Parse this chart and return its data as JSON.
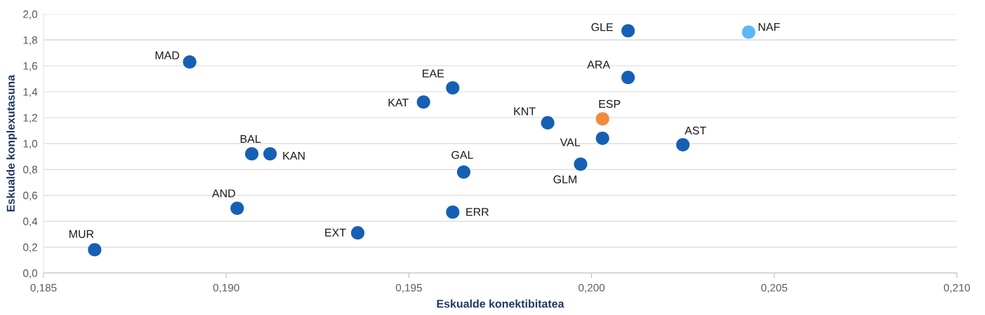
{
  "chart_data": {
    "type": "scatter",
    "xlabel": "Eskualde konektibitatea",
    "ylabel": "Eskualde konplexutasuna",
    "x": [
      0.1864,
      0.189,
      0.1903,
      0.1907,
      0.1912,
      0.1936,
      0.1954,
      0.1962,
      0.1962,
      0.1965,
      0.1988,
      0.1997,
      0.2003,
      0.2003,
      0.201,
      0.201,
      0.2025,
      0.2043
    ],
    "series": [
      {
        "values": [
          0.18,
          1.63,
          0.5,
          0.92,
          0.92,
          0.31,
          1.32,
          1.43,
          0.47,
          0.78,
          1.16,
          0.84,
          1.04,
          1.19,
          1.51,
          1.87,
          0.99,
          1.86
        ],
        "colors": [
          "#1560b4",
          "#1560b4",
          "#1560b4",
          "#1560b4",
          "#1560b4",
          "#1560b4",
          "#1560b4",
          "#1560b4",
          "#1560b4",
          "#1560b4",
          "#1560b4",
          "#1560b4",
          "#1560b4",
          "#f28a3c",
          "#1560b4",
          "#1560b4",
          "#1560b4",
          "#5bb9f3"
        ]
      }
    ],
    "annotations": [
      {
        "text": "MUR",
        "x": 0.1864,
        "y": 0.18
      },
      {
        "text": "MAD",
        "x": 0.189,
        "y": 1.63
      },
      {
        "text": "AND",
        "x": 0.1903,
        "y": 0.5
      },
      {
        "text": "BAL",
        "x": 0.1907,
        "y": 0.92
      },
      {
        "text": "KAN",
        "x": 0.1912,
        "y": 0.92
      },
      {
        "text": "EXT",
        "x": 0.1936,
        "y": 0.31
      },
      {
        "text": "KAT",
        "x": 0.1954,
        "y": 1.32
      },
      {
        "text": "EAE",
        "x": 0.1962,
        "y": 1.43
      },
      {
        "text": "ERR",
        "x": 0.1962,
        "y": 0.47
      },
      {
        "text": "GAL",
        "x": 0.1965,
        "y": 0.78
      },
      {
        "text": "KNT",
        "x": 0.1988,
        "y": 1.16
      },
      {
        "text": "GLM",
        "x": 0.1997,
        "y": 0.84
      },
      {
        "text": "VAL",
        "x": 0.2003,
        "y": 1.04
      },
      {
        "text": "ESP",
        "x": 0.2003,
        "y": 1.19
      },
      {
        "text": "ARA",
        "x": 0.201,
        "y": 1.51
      },
      {
        "text": "GLE",
        "x": 0.201,
        "y": 1.87
      },
      {
        "text": "AST",
        "x": 0.2025,
        "y": 0.99
      },
      {
        "text": "NAF",
        "x": 0.2043,
        "y": 1.86
      }
    ],
    "xlim": [
      0.185,
      0.21
    ],
    "xticks": [
      {
        "value": 0.185,
        "label": "0,185"
      },
      {
        "value": 0.19,
        "label": "0,190"
      },
      {
        "value": 0.195,
        "label": "0,195"
      },
      {
        "value": 0.2,
        "label": "0,200"
      },
      {
        "value": 0.205,
        "label": "0,205"
      },
      {
        "value": 0.21,
        "label": "0,210"
      }
    ],
    "ylim": [
      0.0,
      2.0
    ],
    "yticks": [
      {
        "value": 0.0,
        "label": "0,0"
      },
      {
        "value": 0.2,
        "label": "0,2"
      },
      {
        "value": 0.4,
        "label": "0,4"
      },
      {
        "value": 0.6,
        "label": "0,6"
      },
      {
        "value": 0.8,
        "label": "0,8"
      },
      {
        "value": 1.0,
        "label": "1,0"
      },
      {
        "value": 1.2,
        "label": "1,2"
      },
      {
        "value": 1.4,
        "label": "1,4"
      },
      {
        "value": 1.6,
        "label": "1,6"
      },
      {
        "value": 1.8,
        "label": "1,8"
      },
      {
        "value": 2.0,
        "label": "2,0"
      }
    ],
    "grid": "y",
    "marker": "circle"
  }
}
